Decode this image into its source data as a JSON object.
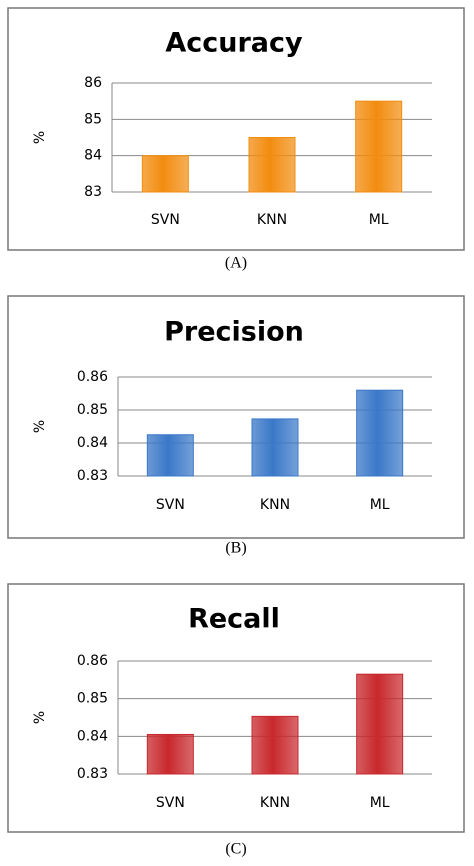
{
  "chart_data": [
    {
      "type": "bar",
      "title": "Accuracy",
      "y_label": "%",
      "categories": [
        "SVN",
        "KNN",
        "ML"
      ],
      "values": [
        84,
        84.5,
        85.5
      ],
      "color": "#f28c0f",
      "ylim": [
        83,
        86
      ],
      "yticks": [
        83,
        84,
        85,
        86
      ],
      "grid": true,
      "caption": "(A)"
    },
    {
      "type": "bar",
      "title": "Precision",
      "y_label": "%",
      "categories": [
        "SVN",
        "KNN",
        "ML"
      ],
      "values": [
        0.8425,
        0.8473,
        0.856
      ],
      "color": "#3a78c8",
      "ylim": [
        0.83,
        0.86
      ],
      "yticks": [
        0.83,
        0.84,
        0.85,
        0.86
      ],
      "grid": true,
      "caption": "(B)"
    },
    {
      "type": "bar",
      "title": "Recall",
      "y_label": "%",
      "categories": [
        "SVN",
        "KNN",
        "ML"
      ],
      "values": [
        0.8405,
        0.8453,
        0.8565
      ],
      "color": "#c8282c",
      "ylim": [
        0.83,
        0.86
      ],
      "yticks": [
        0.83,
        0.84,
        0.85,
        0.86
      ],
      "grid": true,
      "caption": "(C)"
    }
  ]
}
